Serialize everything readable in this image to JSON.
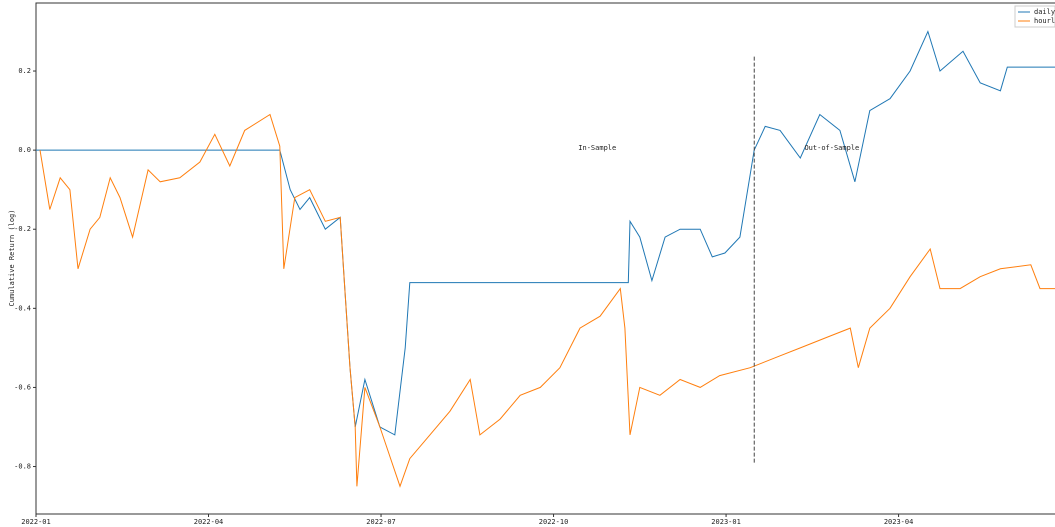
{
  "chart_data": {
    "type": "line",
    "ylabel": "Cumulative Return (log)",
    "xlim": [
      0,
      17.72
    ],
    "ylim": [
      -0.92,
      0.372
    ],
    "xticks": [
      {
        "value": 0,
        "label": "2022-01"
      },
      {
        "value": 3,
        "label": "2022-04"
      },
      {
        "value": 6,
        "label": "2022-07"
      },
      {
        "value": 9,
        "label": "2022-10"
      },
      {
        "value": 12,
        "label": "2023-01"
      },
      {
        "value": 15,
        "label": "2023-04"
      }
    ],
    "yticks": [
      {
        "value": 0.2,
        "label": "0.2"
      },
      {
        "value": 0.0,
        "label": "0.0"
      },
      {
        "value": -0.2,
        "label": "-0.2"
      },
      {
        "value": -0.4,
        "label": "-0.4"
      },
      {
        "value": -0.6,
        "label": "-0.6"
      },
      {
        "value": -0.8,
        "label": "-0.8"
      }
    ],
    "legend": "upper right",
    "series": [
      {
        "name": "daily",
        "color": "#1f77b4",
        "x": [
          0,
          4.24,
          4.42,
          4.59,
          4.76,
          5.03,
          5.29,
          5.37,
          5.46,
          5.55,
          5.72,
          5.98,
          6.24,
          6.42,
          6.5,
          10.3,
          10.33,
          10.5,
          10.71,
          10.94,
          11.2,
          11.55,
          11.76,
          11.98,
          12.24,
          12.49,
          12.68,
          12.94,
          13.29,
          13.63,
          13.98,
          14.24,
          14.5,
          14.85,
          15.2,
          15.51,
          15.72,
          16.12,
          16.42,
          16.77,
          16.89,
          17.72
        ],
        "values": [
          0,
          0,
          -0.1,
          -0.15,
          -0.12,
          -0.2,
          -0.17,
          -0.35,
          -0.55,
          -0.7,
          -0.58,
          -0.7,
          -0.72,
          -0.5,
          -0.335,
          -0.335,
          -0.18,
          -0.22,
          -0.33,
          -0.22,
          -0.2,
          -0.2,
          -0.27,
          -0.26,
          -0.22,
          0.0,
          0.06,
          0.05,
          -0.02,
          0.09,
          0.05,
          -0.08,
          0.1,
          0.13,
          0.2,
          0.3,
          0.2,
          0.25,
          0.17,
          0.15,
          0.21,
          0.21
        ]
      },
      {
        "name": "hourly",
        "color": "#ff7f0e",
        "x": [
          0.07,
          0.24,
          0.42,
          0.59,
          0.73,
          0.94,
          1.11,
          1.29,
          1.46,
          1.68,
          1.95,
          2.16,
          2.5,
          2.85,
          3.11,
          3.37,
          3.63,
          4.07,
          4.24,
          4.31,
          4.5,
          4.76,
          5.03,
          5.29,
          5.37,
          5.46,
          5.55,
          5.58,
          5.72,
          5.98,
          6.33,
          6.5,
          6.85,
          7.2,
          7.55,
          7.72,
          8.07,
          8.42,
          8.77,
          9.11,
          9.46,
          9.81,
          10.16,
          10.24,
          10.33,
          10.5,
          10.85,
          11.2,
          11.55,
          11.89,
          12.42,
          12.94,
          13.29,
          13.81,
          14.16,
          14.3,
          14.5,
          14.85,
          15.2,
          15.55,
          15.72,
          16.07,
          16.42,
          16.77,
          17.3,
          17.46,
          17.72
        ],
        "values": [
          0,
          -0.15,
          -0.07,
          -0.1,
          -0.3,
          -0.2,
          -0.17,
          -0.07,
          -0.12,
          -0.22,
          -0.05,
          -0.08,
          -0.07,
          -0.03,
          0.04,
          -0.04,
          0.05,
          0.09,
          0.01,
          -0.3,
          -0.12,
          -0.1,
          -0.18,
          -0.17,
          -0.35,
          -0.55,
          -0.7,
          -0.85,
          -0.6,
          -0.7,
          -0.85,
          -0.78,
          -0.72,
          -0.66,
          -0.58,
          -0.72,
          -0.68,
          -0.62,
          -0.6,
          -0.55,
          -0.45,
          -0.42,
          -0.35,
          -0.45,
          -0.72,
          -0.6,
          -0.62,
          -0.58,
          -0.6,
          -0.57,
          -0.55,
          -0.52,
          -0.5,
          -0.47,
          -0.45,
          -0.55,
          -0.45,
          -0.4,
          -0.32,
          -0.25,
          -0.35,
          -0.35,
          -0.32,
          -0.3,
          -0.29,
          -0.35,
          -0.35
        ]
      }
    ],
    "vline": {
      "x": 12.49,
      "ymin": -0.79,
      "ymax": 0.24
    },
    "annotations": [
      {
        "text": "In-Sample",
        "x": 9.76,
        "y": 0.0
      },
      {
        "text": "Out-of-Sample",
        "x": 13.84,
        "y": 0.0
      }
    ]
  }
}
